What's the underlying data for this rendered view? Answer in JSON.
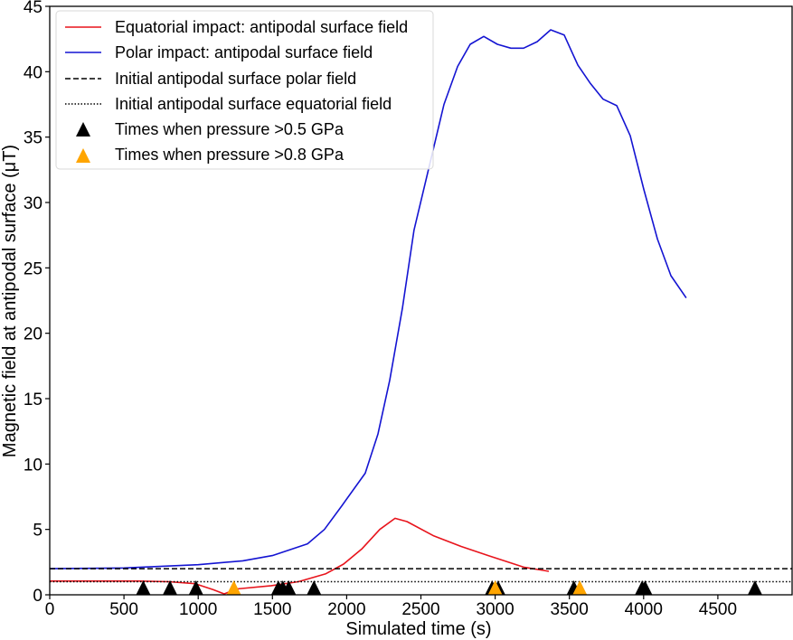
{
  "chart_data": {
    "type": "line",
    "title": "",
    "xlabel": "Simulated time (s)",
    "ylabel": "Magnetic field at antipodal surface (μT)",
    "xlim": [
      0,
      5000
    ],
    "ylim": [
      0,
      45
    ],
    "grid": false,
    "legend_position": "top-left",
    "x_ticks": [
      "0",
      "500",
      "1000",
      "1500",
      "2000",
      "2500",
      "3000",
      "3500",
      "4000",
      "4500"
    ],
    "x_tick_values": [
      0,
      500,
      1000,
      1500,
      2000,
      2500,
      3000,
      3500,
      4000,
      4500
    ],
    "y_ticks": [
      "0",
      "5",
      "10",
      "15",
      "20",
      "25",
      "30",
      "35",
      "40",
      "45"
    ],
    "y_tick_values": [
      0,
      5,
      10,
      15,
      20,
      25,
      30,
      35,
      40,
      45
    ],
    "series": [
      {
        "name": "Equatorial impact: antipodal surface field",
        "color": "#e8141c",
        "style": "solid",
        "x": [
          0,
          300,
          600,
          800,
          980,
          1100,
          1175,
          1261,
          1492,
          1675,
          1857,
          1979,
          2101,
          2223,
          2326,
          2406,
          2588,
          2771,
          2954,
          3197,
          3362
        ],
        "y": [
          1.05,
          1.05,
          1.05,
          1.0,
          0.85,
          0.4,
          0.07,
          0.45,
          0.7,
          1.0,
          1.6,
          2.35,
          3.5,
          5.0,
          5.85,
          5.6,
          4.5,
          3.7,
          3.0,
          2.1,
          1.8
        ]
      },
      {
        "name": "Polar impact: antipodal surface field",
        "color": "#1414d2",
        "style": "solid",
        "x": [
          0,
          500,
          1000,
          1300,
          1500,
          1736,
          1850,
          1967,
          2125,
          2211,
          2290,
          2375,
          2454,
          2546,
          2655,
          2747,
          2832,
          2923,
          3015,
          3106,
          3191,
          3283,
          3374,
          3465,
          3557,
          3642,
          3727,
          3819,
          3910,
          4001,
          4093,
          4184,
          4287
        ],
        "y": [
          2.0,
          2.05,
          2.3,
          2.6,
          3.0,
          3.9,
          5.0,
          6.8,
          9.3,
          12.3,
          16.4,
          21.9,
          27.9,
          32.3,
          37.5,
          40.4,
          42.1,
          42.7,
          42.1,
          41.8,
          41.8,
          42.3,
          43.2,
          42.8,
          40.5,
          39.1,
          37.9,
          37.4,
          35.1,
          31.0,
          27.2,
          24.4,
          22.7
        ]
      },
      {
        "name": "Initial antipodal surface polar field",
        "color": "#000000",
        "style": "dashed",
        "y_const": 2.0
      },
      {
        "name": "Initial antipodal surface equatorial field",
        "color": "#000000",
        "style": "dotted",
        "y_const": 1.0
      },
      {
        "name": "Times when pressure >0.5 GPa",
        "color": "#000000",
        "style": "marker-triangle",
        "x": [
          630,
          810,
          985,
          1540,
          1570,
          1610,
          1780,
          2980,
          3020,
          3530,
          3990,
          4010,
          4750
        ],
        "y": [
          0.5,
          0.5,
          0.5,
          0.5,
          0.5,
          0.5,
          0.5,
          0.5,
          0.5,
          0.5,
          0.5,
          0.5,
          0.5
        ]
      },
      {
        "name": "Times when pressure >0.8 GPa",
        "color": "#ffa500",
        "style": "marker-triangle",
        "x": [
          1240,
          3000,
          3570
        ],
        "y": [
          0.5,
          0.5,
          0.5
        ]
      }
    ]
  }
}
